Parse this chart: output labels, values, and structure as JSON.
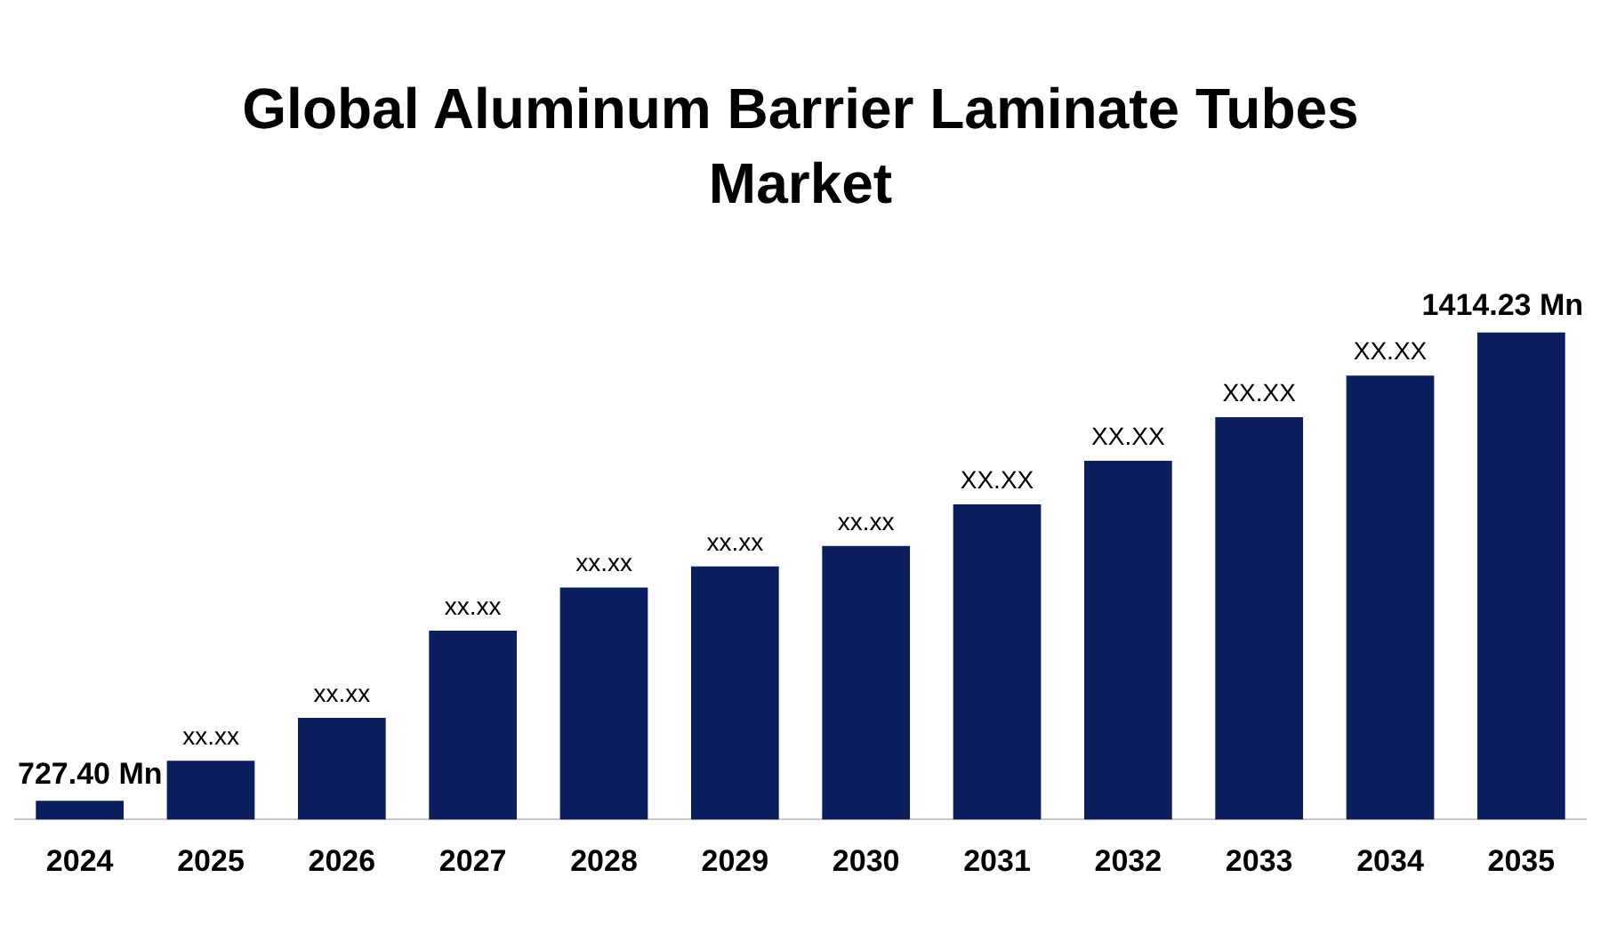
{
  "chart_data": {
    "type": "bar",
    "title": "Global Aluminum Barrier Laminate Tubes Market",
    "grid": false,
    "legend": false,
    "categories": [
      "2024",
      "2025",
      "2026",
      "2027",
      "2028",
      "2029",
      "2030",
      "2031",
      "2032",
      "2033",
      "2034",
      "2035"
    ],
    "color": "#0b1f5e",
    "values": [
      727.4,
      786,
      849,
      977,
      1040,
      1071,
      1101,
      1162,
      1226,
      1290,
      1351,
      1414.23
    ],
    "value_labels": [
      "727.40 Mn",
      "xx.xx",
      "xx.xx",
      "xx.xx",
      "xx.xx",
      "xx.xx",
      "xx.xx",
      "XX.XX",
      "XX.XX",
      "XX.XX",
      "XX.XX",
      "1414.23 Mn"
    ]
  }
}
